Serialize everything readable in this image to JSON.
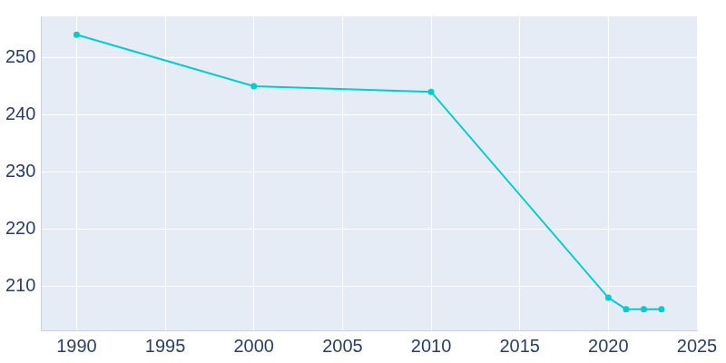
{
  "chart_data": {
    "type": "line",
    "x": [
      1990,
      2000,
      2010,
      2020,
      2021,
      2022,
      2023
    ],
    "values": [
      254,
      245,
      244,
      208,
      206,
      206,
      206
    ],
    "color": "#00cccc",
    "marker": "circle",
    "xlim": [
      1988,
      2025
    ],
    "xticks": [
      1990,
      1995,
      2000,
      2005,
      2010,
      2015,
      2020,
      2025
    ],
    "ylim": [
      202.3,
      257.2
    ],
    "yticks": [
      210,
      220,
      230,
      240,
      250
    ],
    "grid": true
  }
}
